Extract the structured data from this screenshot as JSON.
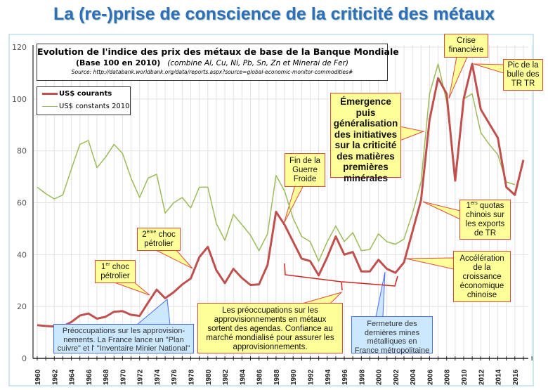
{
  "slide_title": "La (re-)prise de conscience de la criticité des métaux",
  "chart_data": {
    "type": "line",
    "title": "Evolution de l'indice des prix des métaux de base de la Banque Mondiale",
    "subtitle_bold": "(Base 100 en 2010)",
    "subtitle_italic": "(combine Al, Cu, Ni, Pb, Sn, Zn et Minerai de Fer)",
    "source": "Source: http://databank.worldbank.org/data/reports.aspx?source=global-economic-monitor-commodities#",
    "xlabel": "",
    "ylabel": "",
    "ylim": [
      0,
      120
    ],
    "yticks": [
      "0",
      "20",
      "40",
      "60",
      "80",
      "100",
      "120"
    ],
    "xlim": [
      1960,
      2017
    ],
    "xtick_labels": [
      "1960",
      "1962",
      "1964",
      "1966",
      "1968",
      "1970",
      "1972",
      "1974",
      "1976",
      "1978",
      "1980",
      "1982",
      "1984",
      "1986",
      "1988",
      "1990",
      "1992",
      "1994",
      "1996",
      "1998",
      "2000",
      "2002",
      "2004",
      "2006",
      "2008",
      "2010",
      "2012",
      "2014",
      "2016"
    ],
    "grid": "vertical and horizontal",
    "legend_position": "top-left",
    "series": [
      {
        "name": "US$ courants",
        "color": "#c0504d",
        "x": [
          1960,
          1961,
          1962,
          1963,
          1964,
          1965,
          1966,
          1967,
          1968,
          1969,
          1970,
          1971,
          1972,
          1973,
          1974,
          1975,
          1976,
          1977,
          1978,
          1979,
          1980,
          1981,
          1982,
          1983,
          1984,
          1985,
          1986,
          1987,
          1988,
          1989,
          1990,
          1991,
          1992,
          1993,
          1994,
          1995,
          1996,
          1997,
          1998,
          1999,
          2000,
          2001,
          2002,
          2003,
          2004,
          2005,
          2006,
          2007,
          2008,
          2009,
          2010,
          2011,
          2012,
          2013,
          2014,
          2015,
          2016,
          2017
        ],
        "values": [
          12.8,
          12.5,
          12.3,
          12.4,
          14,
          16.5,
          17.3,
          15.3,
          16,
          18,
          18.2,
          16.8,
          16.4,
          21.5,
          26.5,
          23.2,
          25.5,
          28.5,
          30.8,
          39,
          43,
          34,
          29,
          34.5,
          31,
          28.3,
          28.5,
          36,
          56.5,
          51.5,
          45,
          38.5,
          37.5,
          32,
          39,
          47,
          40,
          41,
          33.5,
          33.5,
          38,
          34.5,
          33,
          37,
          49,
          61,
          92,
          108,
          102,
          68.5,
          100,
          113.5,
          96,
          90.5,
          85,
          66,
          63,
          76.5
        ]
      },
      {
        "name": "US$ constants 2010",
        "color": "#9bbb59",
        "x": [
          1960,
          1961,
          1962,
          1963,
          1964,
          1965,
          1966,
          1967,
          1968,
          1969,
          1970,
          1971,
          1972,
          1973,
          1974,
          1975,
          1976,
          1977,
          1978,
          1979,
          1980,
          1981,
          1982,
          1983,
          1984,
          1985,
          1986,
          1987,
          1988,
          1989,
          1990,
          1991,
          1992,
          1993,
          1994,
          1995,
          1996,
          1997,
          1998,
          1999,
          2000,
          2001,
          2002,
          2003,
          2004,
          2005,
          2006,
          2007,
          2008,
          2009,
          2010,
          2011,
          2012,
          2013,
          2014,
          2015,
          2016
        ],
        "values": [
          66,
          63.5,
          61.5,
          63,
          73,
          82.5,
          84,
          73.5,
          77.5,
          82.5,
          79,
          69.5,
          62,
          69.5,
          71,
          56,
          60,
          62,
          58,
          66,
          66,
          52,
          45.5,
          55.5,
          51.5,
          47.5,
          41.5,
          48,
          70.5,
          64.5,
          54,
          47,
          45,
          37.5,
          45,
          51,
          45,
          48.5,
          41.5,
          42,
          48,
          45,
          44,
          46,
          56,
          68,
          102,
          113.5,
          99,
          70.5,
          100,
          102,
          87,
          82.5,
          78.5,
          68,
          67
        ]
      }
    ]
  },
  "annotations": {
    "choc1": {
      "num": "1",
      "sup": "er",
      "rest": " choc",
      "line2": "pétrolier"
    },
    "choc2": {
      "num": "2",
      "sup": "ème",
      "rest": " choc",
      "line2": "pétrolier"
    },
    "preocc_1960s": "Préoccupations sur les approvision-nements. La France lance un \"Plan cuivre\" et l' \"Inventaire Minier National\"",
    "preocc_sortent": "Les préoccupations sur les approvisionnements en métaux sortent des agendas. Confiance au marché mondialisé pour assurer les approvisionnements.",
    "fermeture": "Fermeture des dernières mines métalliques en France métropolitaine",
    "guerre_froide": "Fin de la Guerre Froide",
    "emergence": "Émergence puis généralisation des initiatives sur la criticité des matières premières minérales",
    "crise": "Crise financière",
    "pic": "Pic de la bulle des TR TR",
    "quotas": {
      "num": "1",
      "sup": "ers",
      "rest": " quotas chinois sur les exports de TR"
    },
    "acceleration": "Accélération de la croissance économique chinoise"
  }
}
